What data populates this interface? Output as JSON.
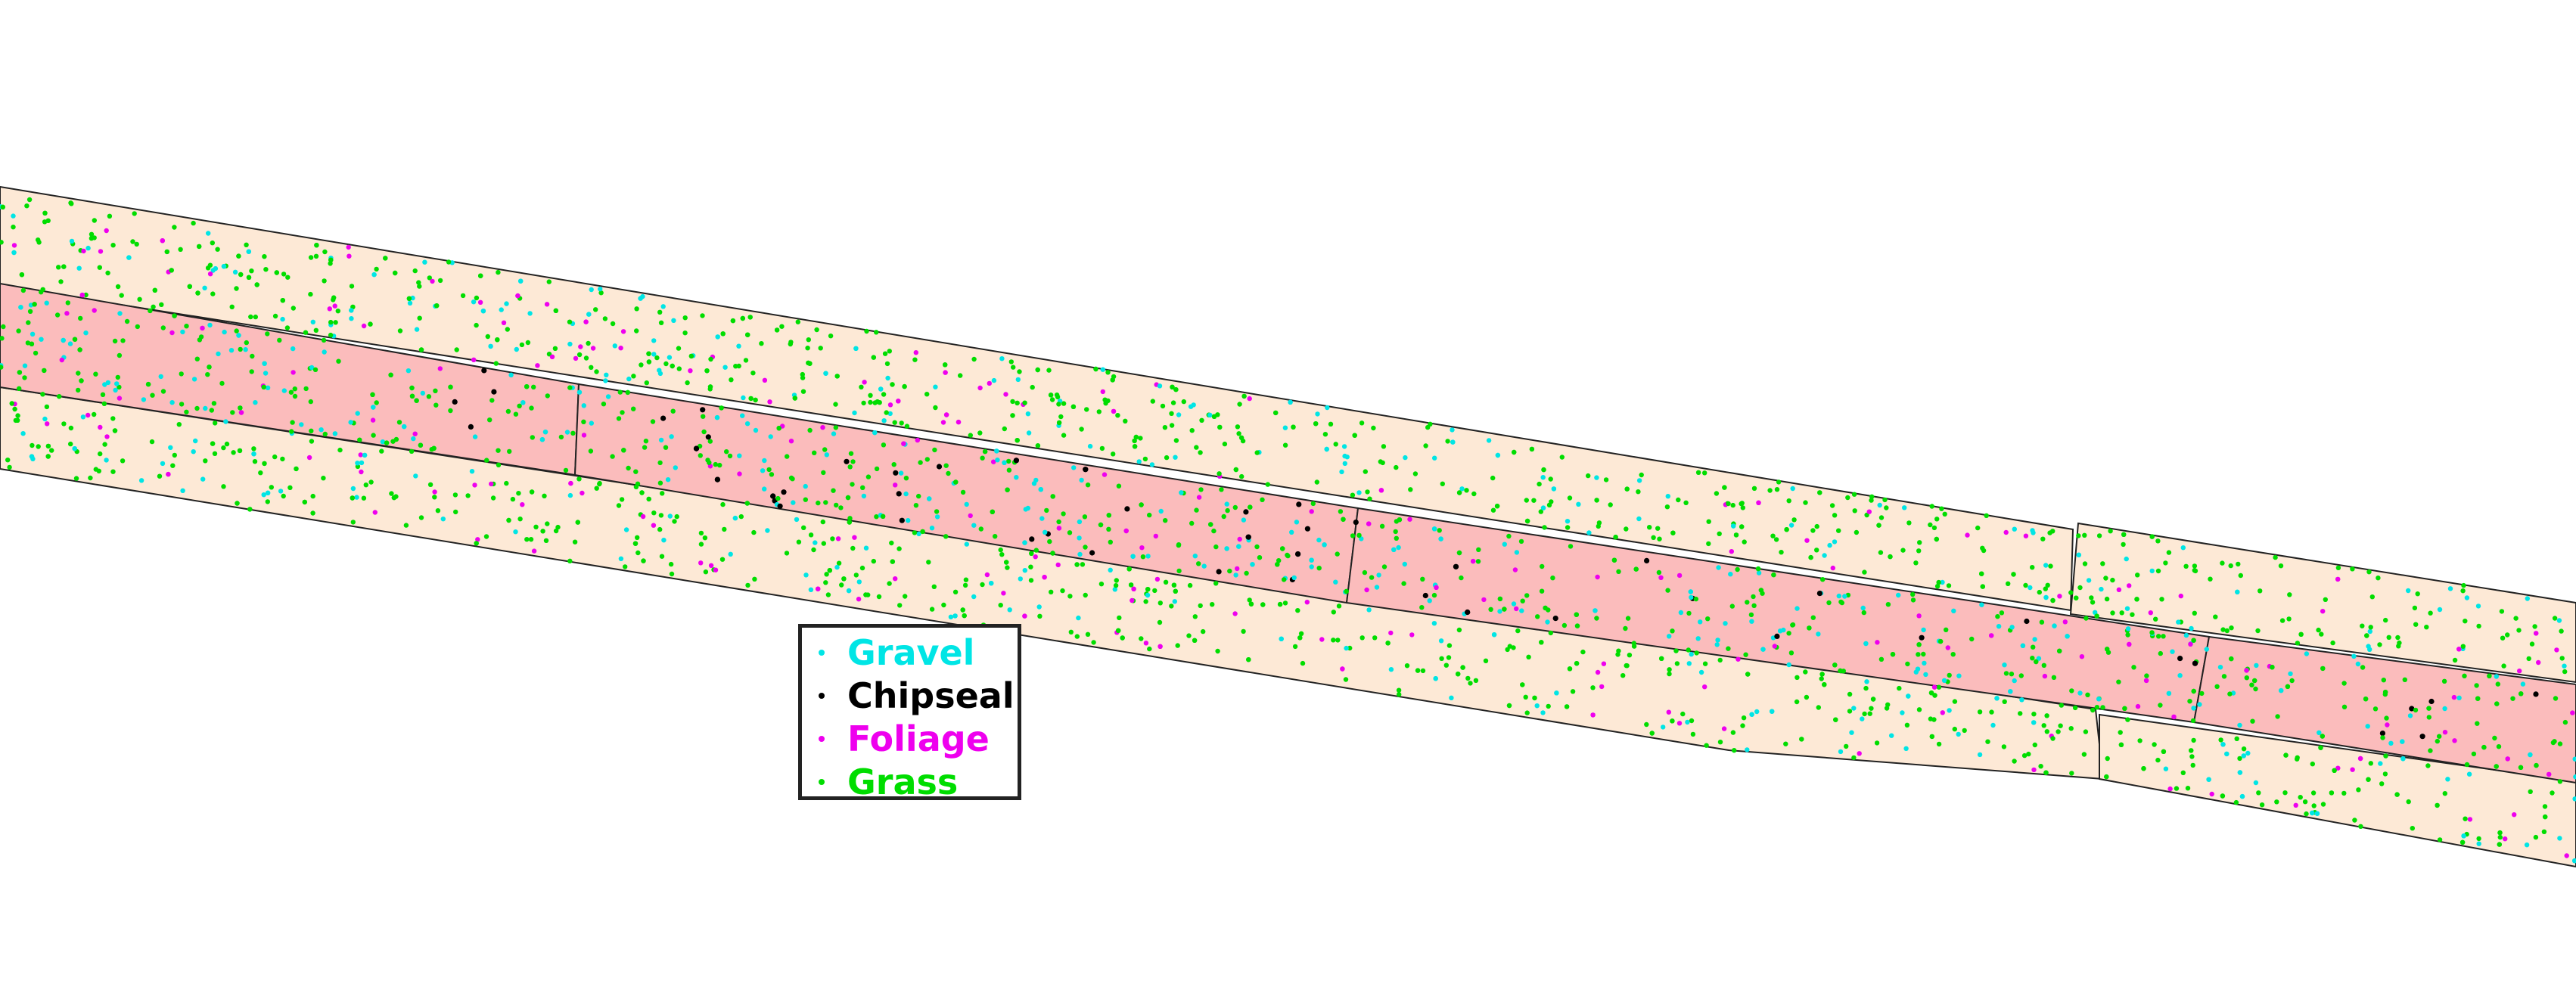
{
  "colors": {
    "shoulder_fill": "#fde9d6",
    "lane_fill": "#fbbcbc",
    "outline": "#222222",
    "background": "#ffffff"
  },
  "legend": {
    "items": [
      {
        "label": "Gravel",
        "color": "#00e5e5",
        "icon": "dot-marker"
      },
      {
        "label": "Chipseal",
        "color": "#000000",
        "icon": "dot-marker"
      },
      {
        "label": "Foliage",
        "color": "#ee00ee",
        "icon": "dot-marker"
      },
      {
        "label": "Grass",
        "color": "#00dd00",
        "icon": "dot-marker"
      }
    ]
  }
}
